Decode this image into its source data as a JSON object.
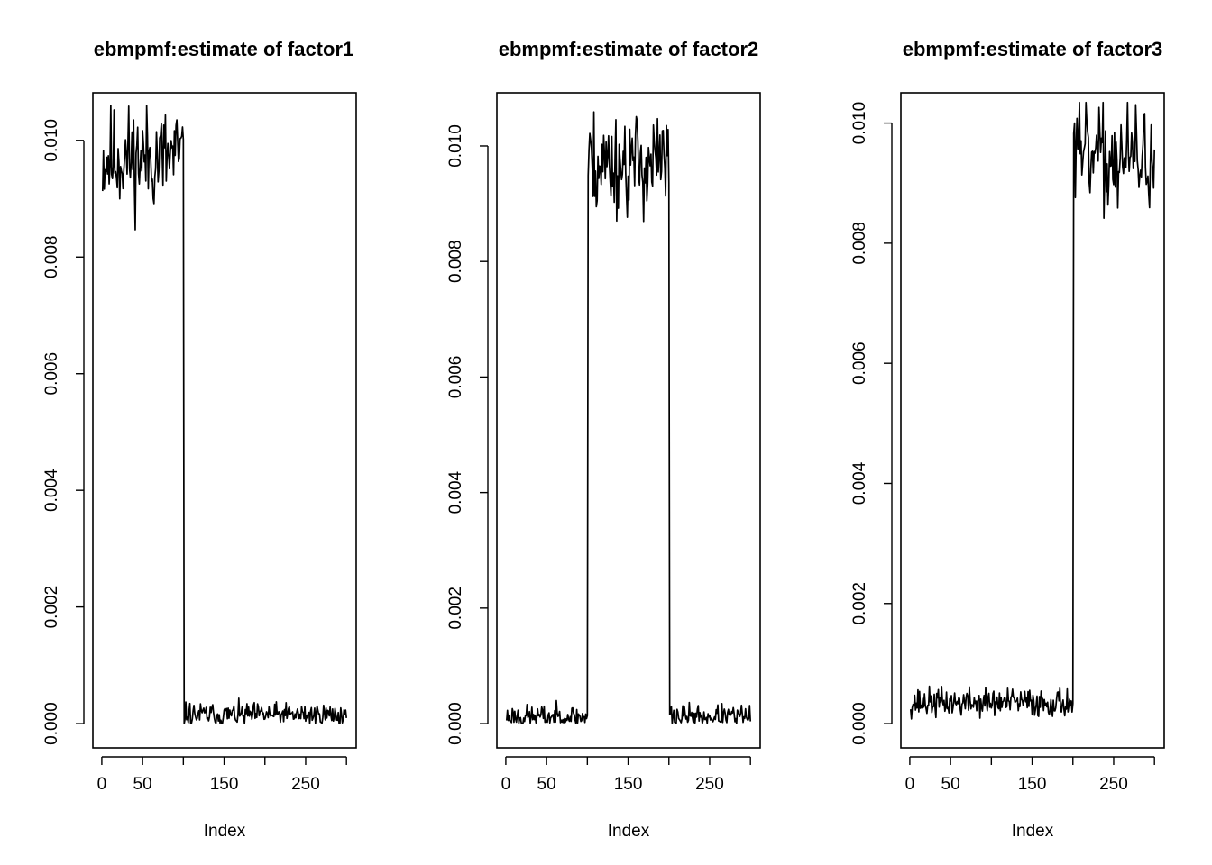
{
  "chart_data": [
    {
      "type": "line",
      "title": "ebmpmf:estimate of factor1",
      "xlabel": "Index",
      "ylabel": "",
      "xlim": [
        1,
        300
      ],
      "ylim": [
        0,
        0.0104
      ],
      "xticks": [
        0,
        50,
        150,
        250
      ],
      "xtick_marks": [
        0,
        50,
        100,
        150,
        200,
        250,
        300
      ],
      "yticks": [
        0,
        0.002,
        0.004,
        0.006,
        0.008,
        0.01
      ],
      "ytick_labels": [
        "0.000",
        "0.002",
        "0.004",
        "0.006",
        "0.008",
        "0.010"
      ],
      "grid": false,
      "n": 300,
      "segments": [
        {
          "from": 1,
          "to": 100,
          "level": 0.0097,
          "noise": 0.00045
        },
        {
          "from": 101,
          "to": 300,
          "level": 0.00015,
          "noise": 0.0001
        }
      ],
      "seed": 11
    },
    {
      "type": "line",
      "title": "ebmpmf:estimate of factor2",
      "xlabel": "Index",
      "ylabel": "",
      "xlim": [
        1,
        300
      ],
      "ylim": [
        0,
        0.0105
      ],
      "xticks": [
        0,
        50,
        150,
        250
      ],
      "xtick_marks": [
        0,
        50,
        100,
        150,
        200,
        250,
        300
      ],
      "yticks": [
        0,
        0.002,
        0.004,
        0.006,
        0.008,
        0.01
      ],
      "ytick_labels": [
        "0.000",
        "0.002",
        "0.004",
        "0.006",
        "0.008",
        "0.010"
      ],
      "grid": false,
      "n": 300,
      "segments": [
        {
          "from": 1,
          "to": 100,
          "level": 0.00012,
          "noise": 0.0001
        },
        {
          "from": 101,
          "to": 200,
          "level": 0.0097,
          "noise": 0.00045
        },
        {
          "from": 201,
          "to": 300,
          "level": 0.00012,
          "noise": 0.0001
        }
      ],
      "seed": 23
    },
    {
      "type": "line",
      "title": "ebmpmf:estimate of factor3",
      "xlabel": "Index",
      "ylabel": "",
      "xlim": [
        1,
        300
      ],
      "ylim": [
        0,
        0.0101
      ],
      "xticks": [
        0,
        50,
        150,
        250
      ],
      "xtick_marks": [
        0,
        50,
        100,
        150,
        200,
        250,
        300
      ],
      "yticks": [
        0,
        0.002,
        0.004,
        0.006,
        0.008,
        0.01
      ],
      "ytick_labels": [
        "0.000",
        "0.002",
        "0.004",
        "0.006",
        "0.008",
        "0.010"
      ],
      "grid": false,
      "n": 300,
      "segments": [
        {
          "from": 1,
          "to": 200,
          "level": 0.00035,
          "noise": 0.00012
        },
        {
          "from": 201,
          "to": 300,
          "level": 0.0094,
          "noise": 0.00045
        }
      ],
      "seed": 37
    }
  ]
}
